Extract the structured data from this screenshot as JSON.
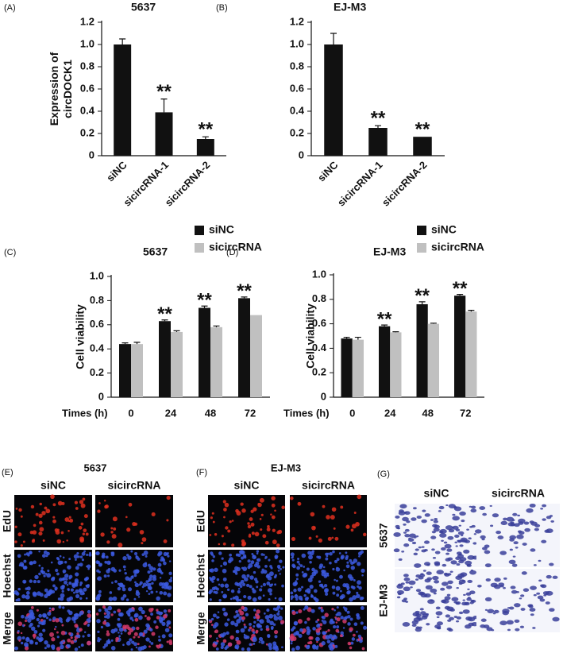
{
  "chart_data": [
    {
      "type": "bar",
      "panel_label": "(A)",
      "title": "5637",
      "ylabel": [
        "Expression of",
        "circDOCK1"
      ],
      "categories": [
        "siNC",
        "sicircRNA-1",
        "sicircRNA-2"
      ],
      "values": [
        1.0,
        0.39,
        0.15
      ],
      "errors": [
        0.05,
        0.12,
        0.02
      ],
      "annotations": [
        null,
        "**",
        "**"
      ],
      "color": "#111111",
      "ylim": [
        0,
        1.2
      ],
      "yticks": [
        0,
        0.2,
        0.4,
        0.6,
        0.8,
        {
          "value": 1,
          "label": "1.0"
        },
        1.2
      ]
    },
    {
      "type": "bar",
      "panel_label": "(B)",
      "title": "EJ-M3",
      "categories": [
        "siNC",
        "sicircRNA-1",
        "sicircRNA-2"
      ],
      "values": [
        1.0,
        0.25,
        0.17
      ],
      "errors": [
        0.1,
        0.02,
        null
      ],
      "annotations": [
        null,
        "**",
        "**"
      ],
      "color": "#111111",
      "ylim": [
        0,
        1.2
      ],
      "yticks": [
        0,
        0.2,
        0.4,
        0.6,
        0.8,
        {
          "value": 1,
          "label": "1.0"
        },
        1.2
      ]
    },
    {
      "type": "bar",
      "panel_label": "(C)",
      "title": "5637",
      "ylabel": [
        "Cell viability"
      ],
      "xlabel": "Times (h)",
      "categories": [
        "0",
        "24",
        "48",
        "72"
      ],
      "legend": "top-right",
      "series": [
        {
          "name": "siNC",
          "color": "#111111",
          "values": [
            0.44,
            0.63,
            0.74,
            0.82
          ],
          "errors": [
            0.01,
            0.01,
            0.015,
            0.01
          ]
        },
        {
          "name": "sicircRNA",
          "color": "#c0c0c0",
          "values": [
            0.44,
            0.54,
            0.58,
            0.68
          ],
          "errors": [
            0.015,
            0.01,
            0.01,
            null
          ]
        }
      ],
      "annotations": [
        null,
        "**",
        "**",
        "**"
      ],
      "ylim": [
        0,
        1
      ],
      "yticks": [
        0,
        0.2,
        0.4,
        0.6,
        0.8,
        {
          "value": 1,
          "label": "1.0"
        }
      ]
    },
    {
      "type": "bar",
      "panel_label": "(D)",
      "title": "EJ-M3",
      "ylabel": [
        "Cell viability"
      ],
      "xlabel": "Times (h)",
      "categories": [
        "0",
        "24",
        "48",
        "72"
      ],
      "legend": "top-right",
      "series": [
        {
          "name": "siNC",
          "color": "#111111",
          "values": [
            0.48,
            0.58,
            0.76,
            0.83
          ],
          "errors": [
            0.01,
            0.01,
            0.02,
            0.01
          ]
        },
        {
          "name": "sicircRNA",
          "color": "#c0c0c0",
          "values": [
            0.47,
            0.53,
            0.6,
            0.7
          ],
          "errors": [
            0.02,
            0.005,
            0.005,
            0.01
          ]
        }
      ],
      "annotations": [
        null,
        "**",
        "**",
        "**"
      ],
      "ylim": [
        0,
        1
      ],
      "yticks": [
        0,
        0.2,
        0.4,
        0.6,
        0.8,
        {
          "value": 1,
          "label": "1.0"
        }
      ]
    }
  ],
  "image_panels": [
    {
      "panel_label": "(E)",
      "title": "5637",
      "columns": [
        "siNC",
        "sicircRNA"
      ],
      "rows": [
        "EdU",
        "Hoechst",
        "Merge"
      ]
    },
    {
      "panel_label": "(F)",
      "title": "EJ-M3",
      "columns": [
        "siNC",
        "sicircRNA"
      ],
      "rows": [
        "EdU",
        "Hoechst",
        "Merge"
      ]
    },
    {
      "panel_label": "(G)",
      "columns": [
        "siNC",
        "sicircRNA"
      ],
      "rows": [
        "5637",
        "EJ-M3"
      ]
    }
  ]
}
